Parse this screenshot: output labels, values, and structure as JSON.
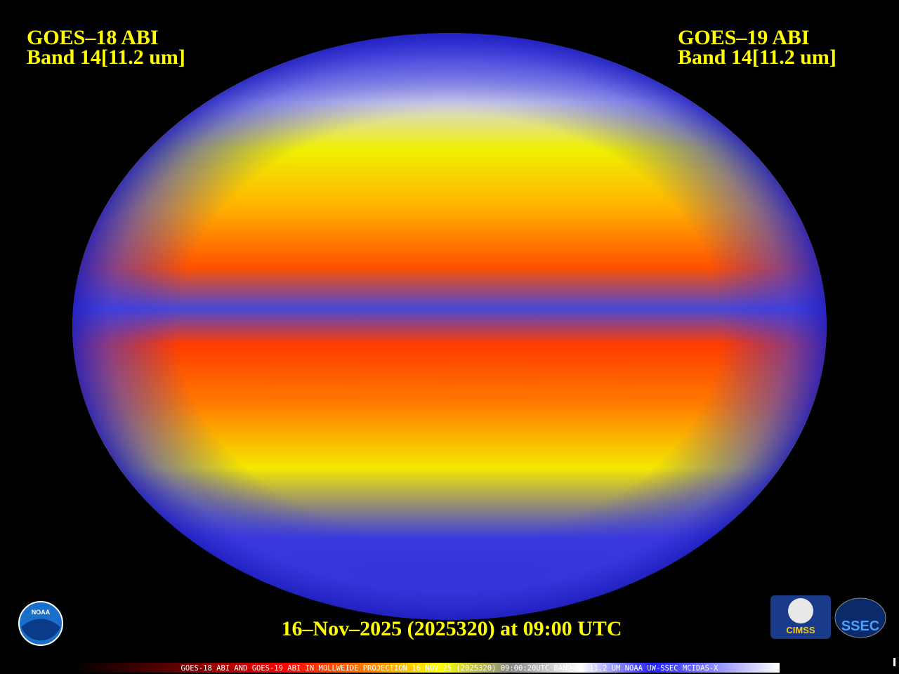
{
  "header": {
    "left": {
      "satellite": "GOES–18 ABI",
      "band": "Band 14[11.2 um]"
    },
    "right": {
      "satellite": "GOES–19 ABI",
      "band": "Band 14[11.2 um]"
    }
  },
  "footer": {
    "timestamp": "16–Nov–2025 (2025320) at 09:00 UTC",
    "caption": "GOES-18 ABI AND GOES-19 ABI IN MOLLWEIDE PROJECTION 16 NOV 25 (2025320) 09:00:20UTC BAND=14 11.2 UM NOAA UW-SSEC MCIDAS-X"
  },
  "logos": {
    "noaa": "NOAA",
    "cimss": "CIMSS",
    "ssec": "SSEC"
  }
}
